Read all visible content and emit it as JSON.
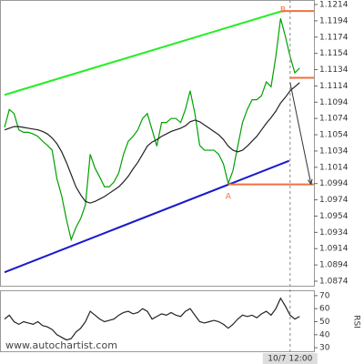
{
  "watermark": "www.autochartist.com",
  "chart_data": [
    {
      "type": "line",
      "categories": [
        null,
        null,
        null,
        null,
        null,
        null,
        null,
        null,
        null,
        null,
        null,
        null,
        null,
        null,
        null,
        null,
        null,
        null,
        null,
        null,
        null,
        null,
        null,
        null,
        null,
        null,
        null,
        null,
        null,
        null,
        null,
        null,
        null,
        null,
        null,
        null,
        null,
        null,
        null,
        null,
        null,
        null,
        null,
        null,
        null,
        null,
        null,
        null,
        null,
        null,
        null,
        null,
        null,
        null,
        null,
        null,
        null,
        null,
        null,
        null,
        "10/7 12:00",
        null,
        null
      ],
      "series": [
        {
          "color": "#00a000",
          "values": [
            1.1063,
            1.1085,
            1.108,
            1.106,
            1.1057,
            1.1057,
            1.1055,
            1.1052,
            1.1046,
            1.1041,
            1.1035,
            1.1,
            1.0979,
            1.095,
            1.0925,
            1.094,
            1.0951,
            1.0968,
            1.103,
            1.1013,
            1.1002,
            1.099,
            1.099,
            1.0996,
            1.1007,
            1.103,
            1.1046,
            1.1052,
            1.106,
            1.1074,
            1.108,
            1.106,
            1.104,
            1.1069,
            1.1069,
            1.1074,
            1.1074,
            1.1069,
            1.1085,
            1.1108,
            1.108,
            1.1041,
            1.1035,
            1.1035,
            1.1035,
            1.103,
            1.1018,
            1.0994,
            1.101,
            1.104,
            1.1069,
            1.1085,
            1.1097,
            1.1097,
            1.1102,
            1.1119,
            1.1113,
            1.115,
            1.1197,
            1.1175,
            1.115,
            1.113,
            1.1136
          ]
        },
        {
          "color": "#222222",
          "values": [
            1.106,
            1.1062,
            1.1064,
            1.1064,
            1.1063,
            1.1062,
            1.1061,
            1.106,
            1.1058,
            1.1055,
            1.105,
            1.1043,
            1.1033,
            1.102,
            1.1005,
            1.099,
            1.098,
            1.0972,
            1.097,
            1.0972,
            1.0975,
            1.0978,
            1.0982,
            1.0986,
            1.099,
            1.0996,
            1.1003,
            1.1012,
            1.102,
            1.103,
            1.104,
            1.1045,
            1.1048,
            1.1052,
            1.1055,
            1.1058,
            1.106,
            1.1062,
            1.1065,
            1.107,
            1.1072,
            1.107,
            1.1066,
            1.1062,
            1.1058,
            1.1054,
            1.1048,
            1.104,
            1.1035,
            1.1033,
            1.1035,
            1.104,
            1.1046,
            1.1052,
            1.106,
            1.1068,
            1.1075,
            1.1083,
            1.1093,
            1.11,
            1.1108,
            1.1113,
            1.1118
          ]
        }
      ],
      "ylim": [
        1.0874,
        1.1214
      ],
      "yticks": [
        1.1214,
        1.1194,
        1.1174,
        1.1154,
        1.1134,
        1.1114,
        1.1094,
        1.1074,
        1.1054,
        1.1034,
        1.1014,
        1.0994,
        1.0974,
        1.0954,
        1.0934,
        1.0914,
        1.0894,
        1.0874
      ],
      "lines": [
        {
          "color": "#22ee22",
          "x": [
            0,
            58.3
          ],
          "values": [
            1.1103,
            1.1206
          ]
        },
        {
          "color": "#1a1acc",
          "x": [
            0,
            59.8
          ],
          "values": [
            1.0885,
            1.1022
          ]
        },
        {
          "color": "#f07040",
          "x": [
            58.3,
            65
          ],
          "values": [
            1.1206,
            1.1206
          ]
        },
        {
          "color": "#f07040",
          "x": [
            60,
            65
          ],
          "values": [
            1.1124,
            1.1124
          ]
        },
        {
          "color": "#f07040",
          "x": [
            47,
            65
          ],
          "values": [
            1.0993,
            1.0993
          ]
        }
      ],
      "arrow": {
        "color": "#333333",
        "x": [
          60,
          64.4
        ],
        "values": [
          1.1118,
          1.0993
        ]
      },
      "points": [
        {
          "label": "A",
          "x": 47,
          "value": 1.0985
        },
        {
          "label": "B",
          "x": 58.5,
          "value": 1.1214
        }
      ]
    },
    {
      "type": "line",
      "ylabel": "RSI",
      "series": [
        {
          "color": "#222222",
          "values": [
            52,
            55,
            50,
            48,
            50,
            49,
            48,
            50,
            47,
            46,
            44,
            40,
            38,
            36,
            37,
            42,
            45,
            50,
            58,
            55,
            52,
            50,
            51,
            52,
            55,
            57,
            58,
            56,
            57,
            60,
            58,
            52,
            54,
            56,
            55,
            57,
            55,
            54,
            58,
            60,
            55,
            50,
            49,
            50,
            51,
            50,
            48,
            45,
            48,
            52,
            55,
            54,
            55,
            53,
            56,
            58,
            55,
            60,
            68,
            62,
            55,
            52,
            54
          ]
        }
      ],
      "ylim": [
        28,
        72
      ],
      "yticks": [
        70,
        60,
        50,
        40,
        30
      ]
    }
  ]
}
